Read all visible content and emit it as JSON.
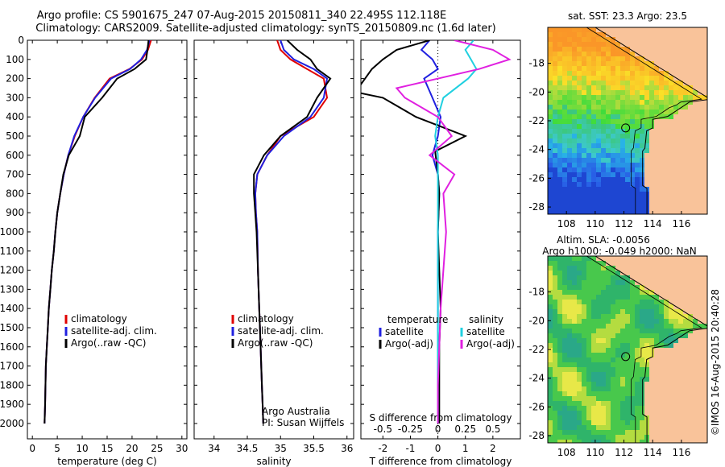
{
  "titles": {
    "line1": "Argo profile: CS 5901675_247 07-Aug-2015 20150811_340 22.495S 112.118E",
    "line2": "Climatology: CARS2009. Satellite-adjusted climatology: synTS_20150809.nc (1.6d later)"
  },
  "credit": "©IMOS 16-Aug-2015 20:40:28",
  "colors": {
    "climatology": "#e00000",
    "satellite": "#2020e0",
    "argo": "#000000",
    "salinity_sat": "#20d0e0",
    "salinity_argo": "#e020e0",
    "land": "#f9c39a"
  },
  "chart_data": [
    {
      "id": "temperature",
      "type": "line",
      "xlabel": "temperature (deg C)",
      "ylabel": "",
      "xlim": [
        -1,
        31
      ],
      "ylim": [
        2080,
        0
      ],
      "x_ticks": [
        0,
        5,
        10,
        15,
        20,
        25,
        30
      ],
      "y_ticks": [
        0,
        100,
        200,
        300,
        400,
        500,
        600,
        700,
        800,
        900,
        1000,
        1100,
        1200,
        1300,
        1400,
        1500,
        1600,
        1700,
        1800,
        1900,
        2000
      ],
      "legend_placement": "lower-center",
      "series": [
        {
          "name": "climatology",
          "color": "#e00000",
          "x": [
            23.8,
            23.2,
            22.0,
            19.5,
            15.5,
            12.5,
            10.2,
            8.5,
            7.2,
            6.3,
            5.6,
            5.0,
            4.6,
            4.3,
            3.9,
            3.6,
            3.3,
            3.1,
            2.9,
            2.7,
            2.55,
            2.45
          ],
          "y": [
            0,
            50,
            100,
            150,
            200,
            300,
            400,
            500,
            600,
            700,
            800,
            900,
            1000,
            1100,
            1200,
            1300,
            1400,
            1500,
            1600,
            1700,
            1900,
            2000
          ]
        },
        {
          "name": "satellite-adj. clim.",
          "color": "#2020e0",
          "x": [
            23.5,
            23.0,
            21.8,
            19.6,
            15.8,
            12.6,
            10.2,
            8.4,
            7.2,
            6.3,
            5.6,
            5.0,
            4.6,
            4.3,
            3.9,
            3.6,
            3.3,
            3.1,
            2.9,
            2.7,
            2.55,
            2.45
          ],
          "y": [
            0,
            50,
            100,
            150,
            200,
            300,
            400,
            500,
            600,
            700,
            800,
            900,
            1000,
            1100,
            1200,
            1300,
            1400,
            1500,
            1600,
            1700,
            1900,
            2000
          ]
        },
        {
          "name": "Argo(..raw -QC)",
          "color": "#000000",
          "x": [
            23.3,
            23.1,
            22.8,
            20.5,
            17.0,
            14.0,
            10.5,
            9.5,
            7.3,
            6.2,
            5.6,
            5.0,
            4.6,
            4.3,
            3.9,
            3.6,
            3.3,
            3.1,
            2.9,
            2.7,
            2.55,
            2.45
          ],
          "y": [
            0,
            50,
            100,
            150,
            200,
            300,
            400,
            500,
            600,
            700,
            800,
            900,
            1000,
            1100,
            1200,
            1300,
            1400,
            1500,
            1600,
            1700,
            1900,
            2000
          ]
        }
      ]
    },
    {
      "id": "salinity",
      "type": "line",
      "xlabel": "salinity",
      "ylabel": "",
      "xlim": [
        33.7,
        36.1
      ],
      "ylim": [
        2080,
        0
      ],
      "x_ticks": [
        34,
        34.5,
        35,
        35.5,
        36
      ],
      "annotations": [
        "Argo Australia",
        "PI: Susan Wijffels"
      ],
      "legend_placement": "lower-center",
      "series": [
        {
          "name": "climatology",
          "color": "#e00000",
          "x": [
            34.95,
            35.0,
            35.15,
            35.4,
            35.65,
            35.7,
            35.5,
            35.0,
            34.8,
            34.65,
            34.62,
            34.63,
            34.65,
            34.66,
            34.68,
            34.69,
            34.7,
            34.71,
            34.72,
            34.73,
            34.74
          ],
          "y": [
            0,
            50,
            100,
            150,
            200,
            300,
            400,
            500,
            600,
            700,
            800,
            900,
            1000,
            1200,
            1400,
            1500,
            1600,
            1700,
            1800,
            1900,
            2000
          ]
        },
        {
          "name": "satellite-adj. clim.",
          "color": "#2020e0",
          "x": [
            35.0,
            35.05,
            35.2,
            35.5,
            35.7,
            35.65,
            35.45,
            35.05,
            34.8,
            34.65,
            34.62,
            34.63,
            34.65,
            34.66,
            34.68,
            34.69,
            34.7,
            34.71,
            34.72,
            34.73,
            34.74
          ],
          "y": [
            0,
            50,
            100,
            150,
            200,
            300,
            400,
            500,
            600,
            700,
            800,
            900,
            1000,
            1200,
            1400,
            1500,
            1600,
            1700,
            1800,
            1900,
            2000
          ]
        },
        {
          "name": "Argo(..raw -QC)",
          "color": "#000000",
          "x": [
            35.1,
            35.25,
            35.45,
            35.55,
            35.75,
            35.55,
            35.4,
            35.0,
            34.75,
            34.6,
            34.6,
            34.62,
            34.64,
            34.66,
            34.68,
            34.69,
            34.7,
            34.71,
            34.72,
            34.73,
            34.74
          ],
          "y": [
            0,
            50,
            100,
            150,
            200,
            300,
            400,
            500,
            600,
            700,
            800,
            900,
            1000,
            1200,
            1400,
            1500,
            1600,
            1700,
            1800,
            1900,
            2000
          ]
        }
      ]
    },
    {
      "id": "difference",
      "type": "line",
      "xlabel": "T difference from climatology",
      "x2label": "S difference from climatology",
      "xlim": [
        -2.8,
        3.0
      ],
      "x_ticks": [
        -2,
        -1,
        0,
        1,
        2
      ],
      "x2_ticks": [
        "-0.5",
        "-0.25",
        "0",
        "0.25",
        "0.5"
      ],
      "ylim": [
        2080,
        0
      ],
      "legend_placement": "lower-center",
      "legend_groups": [
        "temperature",
        "salinity"
      ],
      "series": [
        {
          "name": "satellite",
          "group": "temperature",
          "color": "#2020e0",
          "x": [
            -0.3,
            -0.6,
            -0.2,
            0.0,
            -0.5,
            -0.2,
            0.1,
            0.0,
            -0.2,
            0.0,
            0.05,
            0.0,
            0.0,
            0.0,
            0.0,
            0.0,
            0.0
          ],
          "y": [
            0,
            50,
            100,
            150,
            200,
            300,
            400,
            500,
            600,
            700,
            800,
            1000,
            1200,
            1400,
            1600,
            1800,
            2000
          ]
        },
        {
          "name": "Argo(-adj)",
          "group": "temperature",
          "color": "#000000",
          "x": [
            -0.3,
            -1.5,
            -2.0,
            -2.4,
            -3.0,
            -2.0,
            -0.8,
            1.0,
            -0.1,
            0.0,
            0.05,
            0.0,
            0.05,
            0.1,
            0.05,
            0.05,
            0.05
          ],
          "y": [
            0,
            50,
            100,
            150,
            270,
            300,
            400,
            500,
            580,
            700,
            800,
            1000,
            1200,
            1400,
            1600,
            1800,
            2000
          ]
        },
        {
          "name": "satellite",
          "group": "salinity",
          "color": "#20d0e0",
          "x": [
            1.3,
            1.0,
            1.2,
            1.4,
            1.1,
            0.2,
            0.0,
            -0.1,
            0.0,
            0.0,
            0.0,
            0.0,
            0.0,
            0.0,
            0.0,
            0.0,
            0.0
          ],
          "y": [
            0,
            50,
            100,
            150,
            200,
            300,
            400,
            500,
            600,
            700,
            800,
            1000,
            1200,
            1400,
            1600,
            1800,
            2000
          ]
        },
        {
          "name": "Argo(-adj)",
          "group": "salinity",
          "color": "#e020e0",
          "x": [
            0.6,
            2.0,
            2.6,
            1.5,
            -1.5,
            -1.2,
            0.0,
            0.5,
            -0.3,
            0.6,
            0.2,
            0.3,
            0.2,
            0.1,
            0.05,
            0.0,
            0.0
          ],
          "y": [
            0,
            50,
            100,
            150,
            250,
            300,
            400,
            500,
            600,
            700,
            800,
            1000,
            1200,
            1400,
            1600,
            1800,
            2000
          ]
        }
      ]
    },
    {
      "id": "sst_map",
      "type": "heatmap",
      "title": "sat. SST: 23.3  Argo: 23.5",
      "xlim": [
        106.7,
        117.8
      ],
      "ylim": [
        -28.5,
        -15.5
      ],
      "x_ticks": [
        108,
        110,
        112,
        114,
        116
      ],
      "y_ticks": [
        -18,
        -20,
        -22,
        -24,
        -26,
        -28
      ],
      "marker": {
        "lon": 112.118,
        "lat": -22.495
      }
    },
    {
      "id": "sla_map",
      "type": "heatmap",
      "title": "Altim. SLA: -0.0056",
      "subtitle": "Argo h1000: -0.049 h2000: NaN",
      "xlim": [
        106.7,
        117.8
      ],
      "ylim": [
        -28.5,
        -15.5
      ],
      "x_ticks": [
        108,
        110,
        112,
        114,
        116
      ],
      "y_ticks": [
        -18,
        -20,
        -22,
        -24,
        -26,
        -28
      ],
      "marker": {
        "lon": 112.118,
        "lat": -22.495
      }
    }
  ]
}
